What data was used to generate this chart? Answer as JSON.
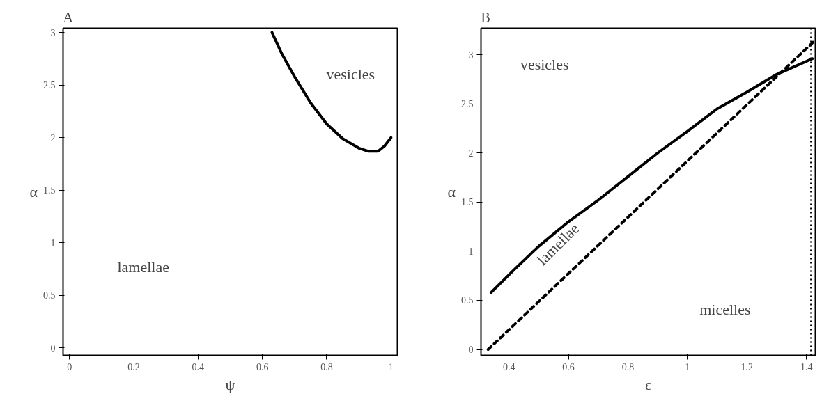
{
  "chart_data": [
    {
      "type": "line",
      "title": "A",
      "xlabel": "ψ",
      "ylabel": "α",
      "xlim": [
        -0.02,
        1.02
      ],
      "ylim": [
        -0.07,
        3.04
      ],
      "xticks": [
        0,
        0.2,
        0.4,
        0.6,
        0.8,
        1
      ],
      "yticks": [
        0,
        0.5,
        1,
        1.5,
        2,
        2.5,
        3
      ],
      "grid": false,
      "marker": "none",
      "line_style": "solid",
      "series": [
        {
          "color": "#000000",
          "x": [
            0.63,
            0.66,
            0.7,
            0.75,
            0.8,
            0.85,
            0.9,
            0.93,
            0.96,
            0.98,
            1.0
          ],
          "values": [
            3.0,
            2.8,
            2.58,
            2.33,
            2.13,
            1.99,
            1.9,
            1.87,
            1.87,
            1.92,
            2.0
          ]
        }
      ],
      "annotations": [
        "vesicles",
        "lamellae"
      ]
    },
    {
      "type": "line",
      "title": "B",
      "xlabel": "ε",
      "ylabel": "α",
      "xlim": [
        0.306,
        1.43
      ],
      "ylim": [
        -0.06,
        3.27
      ],
      "xticks": [
        0.4,
        0.6,
        0.8,
        1,
        1.2,
        1.4
      ],
      "yticks": [
        0,
        0.5,
        1,
        1.5,
        2,
        2.5,
        3
      ],
      "grid": false,
      "marker": "none",
      "series": [
        {
          "color": "#000000",
          "line_style": "solid",
          "x": [
            0.34,
            0.42,
            0.5,
            0.6,
            0.7,
            0.8,
            0.9,
            1.0,
            1.1,
            1.2,
            1.3,
            1.42
          ],
          "values": [
            0.58,
            0.82,
            1.05,
            1.3,
            1.52,
            1.76,
            2.0,
            2.22,
            2.45,
            2.62,
            2.8,
            2.96
          ]
        },
        {
          "color": "#000000",
          "line_style": "dashed",
          "x": [
            0.33,
            1.43
          ],
          "values": [
            0.0,
            3.15
          ]
        }
      ],
      "ref_lines": [
        {
          "axis": "x",
          "value": 1.415,
          "line_style": "dotted",
          "color": "#000000"
        }
      ],
      "annotations": [
        "vesicles",
        "lamellae",
        "micelles"
      ]
    }
  ]
}
